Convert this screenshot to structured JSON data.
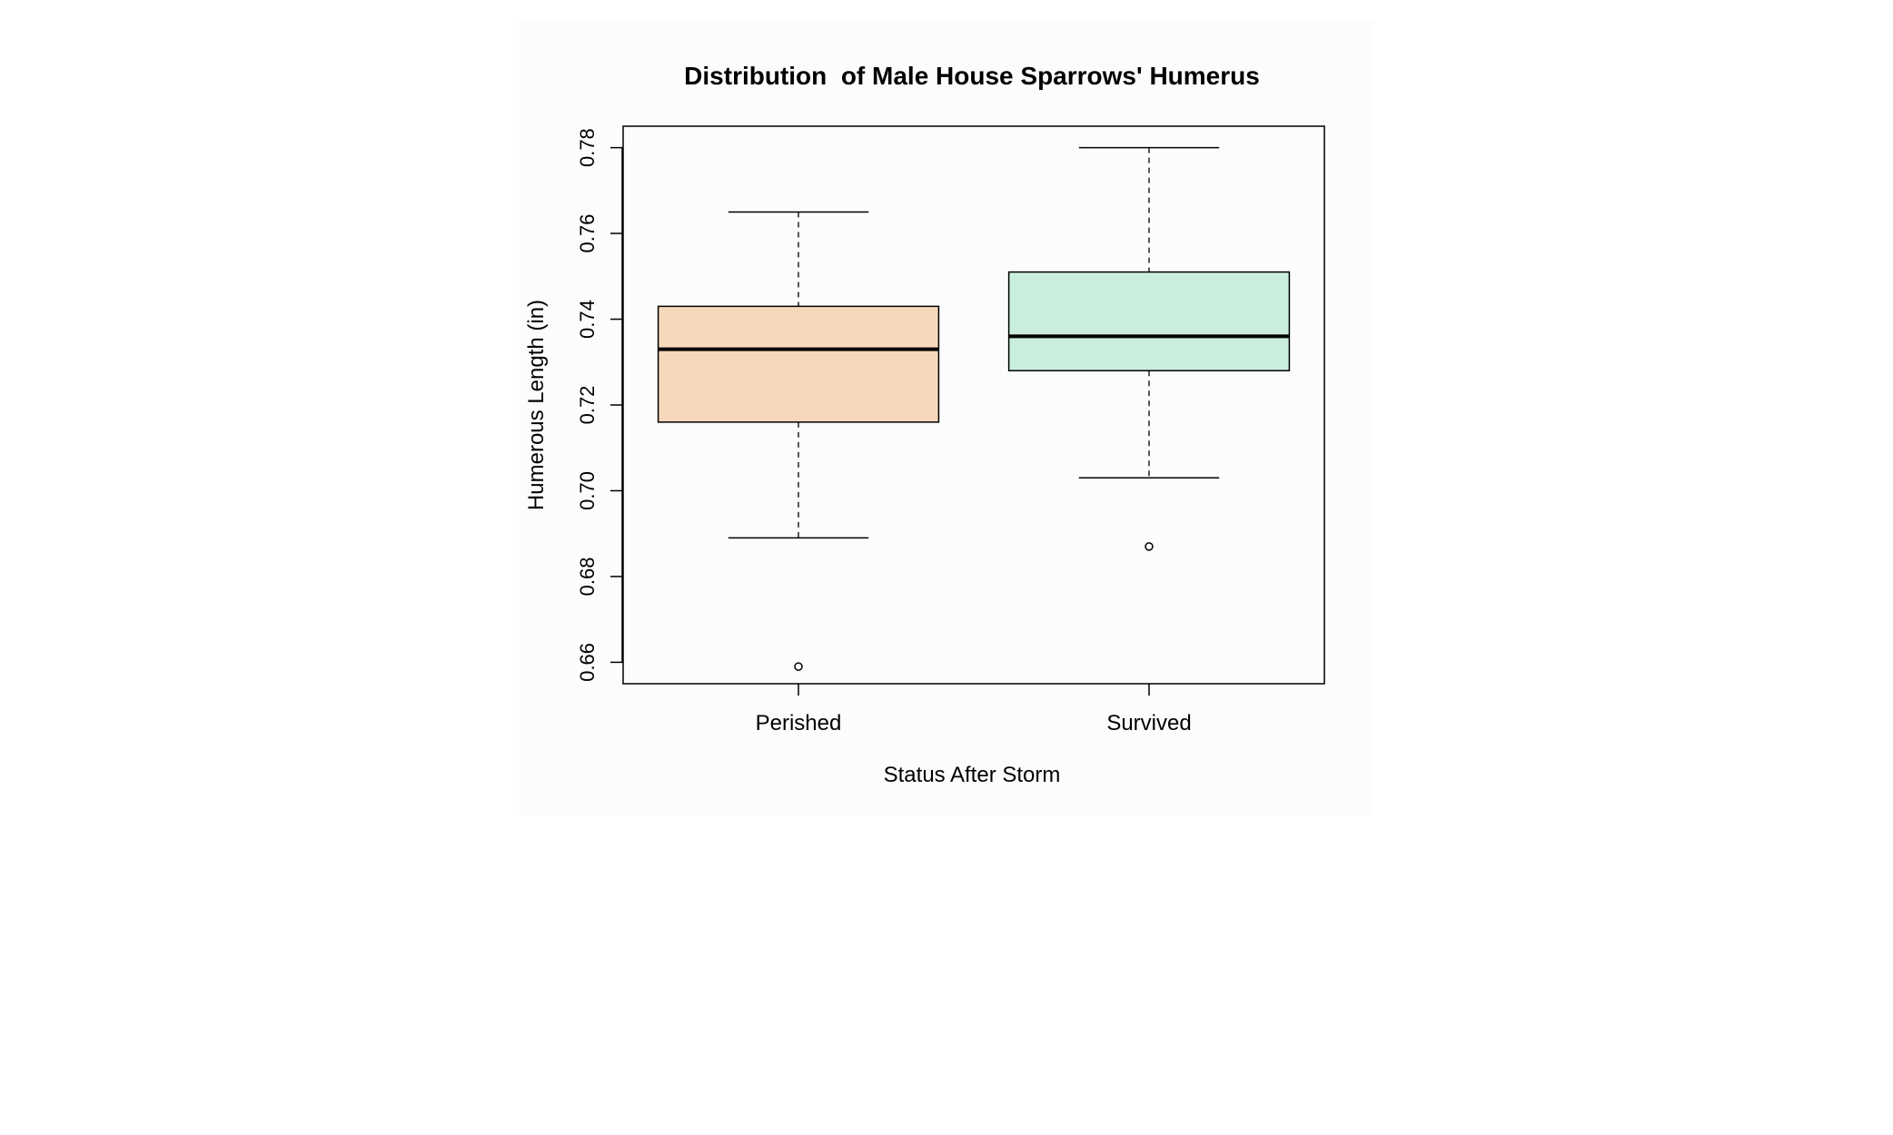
{
  "chart_data": {
    "type": "boxplot",
    "title": "Distribution  of Male House Sparrows' Humerus",
    "xlabel": "Status After Storm",
    "ylabel": "Humerous Length (in)",
    "ylim": [
      0.655,
      0.785
    ],
    "yticks": [
      0.66,
      0.68,
      0.7,
      0.72,
      0.74,
      0.76,
      0.78
    ],
    "ytick_labels": [
      "0.66",
      "0.68",
      "0.70",
      "0.72",
      "0.74",
      "0.76",
      "0.78"
    ],
    "grid": false,
    "categories": [
      "Perished",
      "Survived"
    ],
    "boxes": [
      {
        "label": "Perished",
        "color": "#f7d8bb",
        "whisker_low": 0.689,
        "q1": 0.716,
        "median": 0.733,
        "q3": 0.743,
        "whisker_high": 0.765,
        "outliers": [
          0.659
        ]
      },
      {
        "label": "Survived",
        "color": "#c9eedd",
        "whisker_low": 0.703,
        "q1": 0.728,
        "median": 0.736,
        "q3": 0.751,
        "whisker_high": 0.78,
        "outliers": [
          0.687
        ]
      }
    ]
  }
}
